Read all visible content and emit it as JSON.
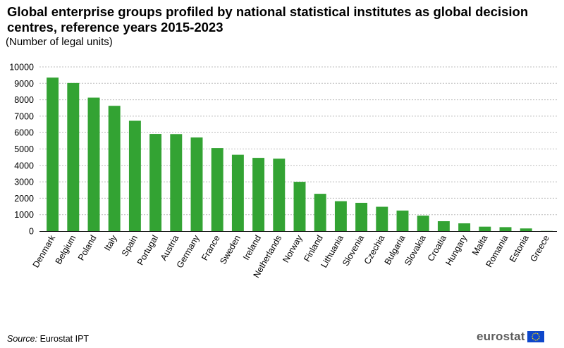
{
  "header": {
    "title": "Global enterprise groups profiled by national statistical institutes as global decision centres, reference years 2015-2023",
    "subtitle": "(Number  of legal units)"
  },
  "footer": {
    "source_label": "Source:",
    "source_text": "Eurostat IPT",
    "logo_text": "eurostat"
  },
  "colors": {
    "bar": "#33a333",
    "grid": "#bdbdbd",
    "axis": "#000000",
    "flag": "#0e47cb",
    "flag_stars": "#ffdd00"
  },
  "chart_data": {
    "type": "bar",
    "title": "Global enterprise groups profiled by national statistical institutes as global decision centres, reference years 2015-2023",
    "subtitle": "(Number  of legal units)",
    "xlabel": "",
    "ylabel": "",
    "ylim": [
      0,
      10000
    ],
    "yticks": [
      0,
      1000,
      2000,
      3000,
      4000,
      5000,
      6000,
      7000,
      8000,
      9000,
      10000
    ],
    "grid": "horizontal dotted",
    "categories": [
      "Denmark",
      "Belgium",
      "Poland",
      "Italy",
      "Spain",
      "Portugal",
      "Austria",
      "Germany",
      "France",
      "Sweden",
      "Ireland",
      "Netherlands",
      "Norway",
      "Finland",
      "Lithuania",
      "Slovenia",
      "Czechia",
      "Bulgaria",
      "Slovakia",
      "Croatia",
      "Hungary",
      "Malta",
      "Romania",
      "Estonia",
      "Greece"
    ],
    "values": [
      9350,
      9020,
      8130,
      7630,
      6720,
      5920,
      5910,
      5700,
      5060,
      4650,
      4460,
      4410,
      3000,
      2270,
      1820,
      1720,
      1480,
      1250,
      940,
      600,
      470,
      270,
      240,
      160,
      10
    ]
  }
}
